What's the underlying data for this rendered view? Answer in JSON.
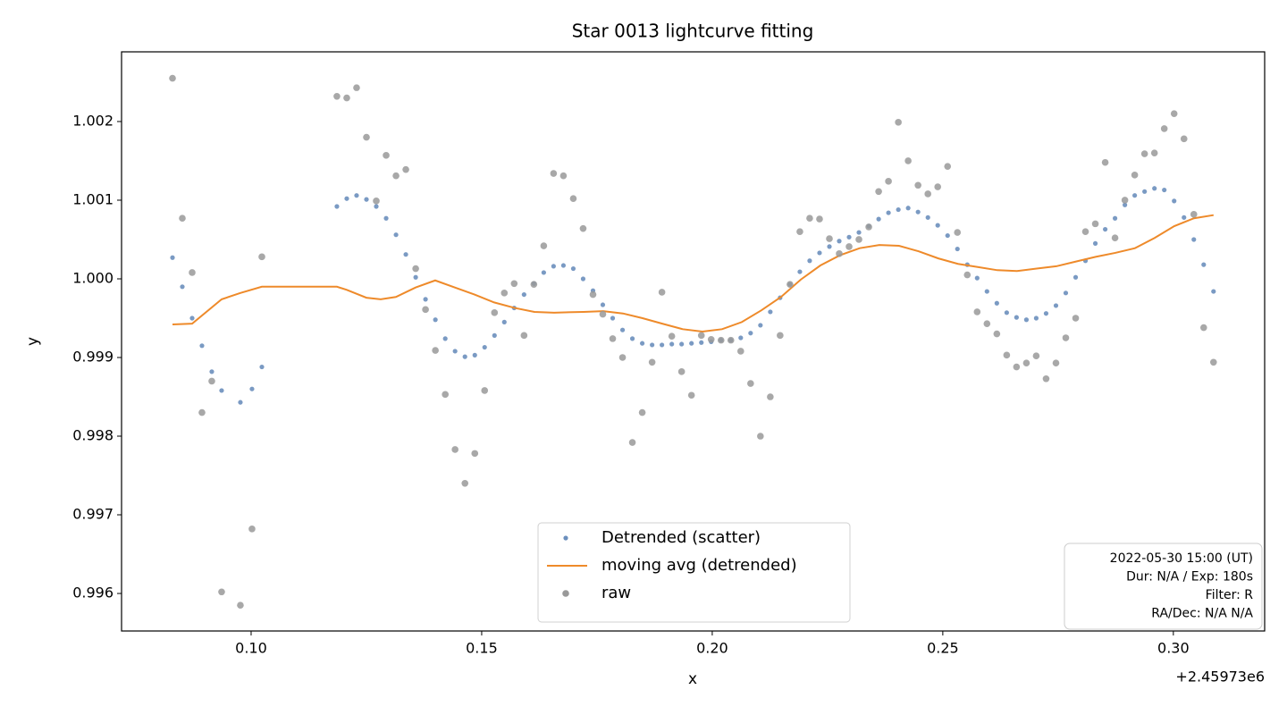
{
  "chart_data": {
    "type": "scatter",
    "title": "Star 0013 lightcurve fitting",
    "x_label": "x",
    "y_label": "y",
    "x_offset_label": "+2.45973e6",
    "xlim": [
      0.0719,
      0.3198
    ],
    "ylim": [
      0.995523,
      1.002886
    ],
    "xticks": [
      {
        "value": 0.1,
        "label": "0.10"
      },
      0.15,
      {
        "value": 0.2,
        "label": "0.20"
      },
      0.25,
      {
        "value": 0.3,
        "label": "0.30"
      }
    ],
    "yticks": [
      0.996,
      0.997,
      0.998,
      0.999,
      {
        "value": 1.0,
        "label": "1.000"
      },
      1.001,
      1.002
    ],
    "grid": false,
    "legend": "lower center",
    "annotation_lines": [
      "2022-05-30 15:00 (UT)",
      "Dur: N/A / Exp: 180s",
      "Filter: R",
      "RA/Dec: N/A N/A"
    ],
    "series": [
      {
        "name": "Detrended (scatter)",
        "type": "scatter",
        "color": "#6b8fbd",
        "x": [
          0.08295,
          0.08508,
          0.08721,
          0.08934,
          0.09147,
          0.0936,
          0.09767,
          0.10019,
          0.10233,
          0.1186,
          0.12074,
          0.12287,
          0.12501,
          0.12714,
          0.12928,
          0.13142,
          0.13355,
          0.13569,
          0.13782,
          0.13996,
          0.1421,
          0.14423,
          0.14637,
          0.14851,
          0.15064,
          0.15278,
          0.15491,
          0.15705,
          0.15919,
          0.16132,
          0.16346,
          0.16559,
          0.16773,
          0.16987,
          0.172,
          0.17414,
          0.17627,
          0.17841,
          0.18055,
          0.18268,
          0.18482,
          0.18696,
          0.18909,
          0.19123,
          0.19336,
          0.1955,
          0.19764,
          0.19977,
          0.20191,
          0.20404,
          0.20618,
          0.20832,
          0.21045,
          0.21259,
          0.21472,
          0.21686,
          0.219,
          0.22113,
          0.22327,
          0.22541,
          0.22754,
          0.22968,
          0.23181,
          0.23395,
          0.23609,
          0.23822,
          0.24036,
          0.24249,
          0.24463,
          0.24677,
          0.2489,
          0.25104,
          0.25317,
          0.25531,
          0.25745,
          0.25958,
          0.26172,
          0.26386,
          0.26599,
          0.26813,
          0.27026,
          0.2724,
          0.27454,
          0.27667,
          0.27881,
          0.28094,
          0.28308,
          0.28522,
          0.28735,
          0.28949,
          0.29162,
          0.29376,
          0.2959,
          0.29803,
          0.30017,
          0.30231,
          0.30444,
          0.30658,
          0.30871
        ],
        "values": [
          1.00027,
          0.9999,
          0.9995,
          0.99915,
          0.99882,
          0.99858,
          0.99843,
          0.9986,
          0.99888,
          1.00092,
          1.00102,
          1.00106,
          1.00101,
          1.00092,
          1.00077,
          1.00056,
          1.00031,
          1.00002,
          0.99974,
          0.99948,
          0.99924,
          0.99908,
          0.99901,
          0.99903,
          0.99913,
          0.99928,
          0.99945,
          0.99963,
          0.9998,
          0.99994,
          1.00008,
          1.00016,
          1.00017,
          1.00013,
          1.0,
          0.99985,
          0.99967,
          0.9995,
          0.99935,
          0.99924,
          0.99918,
          0.99916,
          0.99916,
          0.99917,
          0.99917,
          0.99918,
          0.99919,
          0.9992,
          0.99922,
          0.99922,
          0.99925,
          0.99931,
          0.99941,
          0.99958,
          0.99976,
          0.99993,
          1.00009,
          1.00023,
          1.00033,
          1.00041,
          1.00048,
          1.00053,
          1.00059,
          1.00067,
          1.00076,
          1.00084,
          1.00088,
          1.0009,
          1.00085,
          1.00078,
          1.00068,
          1.00055,
          1.00038,
          1.00018,
          1.00001,
          0.99984,
          0.99969,
          0.99957,
          0.99951,
          0.99948,
          0.9995,
          0.99956,
          0.99966,
          0.99982,
          1.00002,
          1.00023,
          1.00045,
          1.00063,
          1.00077,
          1.00094,
          1.00106,
          1.00111,
          1.00115,
          1.00113,
          1.00099,
          1.00078,
          1.0005,
          1.00018,
          0.99984
        ]
      },
      {
        "name": "moving avg (detrended)",
        "type": "line",
        "color": "#ee8a2a",
        "x": [
          0.08295,
          0.08721,
          0.0936,
          0.09767,
          0.10233,
          0.1186,
          0.12074,
          0.125,
          0.1281,
          0.1314,
          0.13566,
          0.13992,
          0.14419,
          0.14845,
          0.15271,
          0.15717,
          0.16143,
          0.1657,
          0.17209,
          0.17636,
          0.18062,
          0.18488,
          0.18915,
          0.1936,
          0.19787,
          0.20213,
          0.2064,
          0.21066,
          0.21492,
          0.21919,
          0.22345,
          0.22771,
          0.23198,
          0.23624,
          0.2405,
          0.24477,
          0.24903,
          0.25329,
          0.25756,
          0.26182,
          0.26609,
          0.27035,
          0.27461,
          0.27888,
          0.28314,
          0.2874,
          0.29167,
          0.29593,
          0.30019,
          0.30446,
          0.30872
        ],
        "values": [
          0.99942,
          0.99943,
          0.99974,
          0.99982,
          0.9999,
          0.9999,
          0.99986,
          0.99976,
          0.99974,
          0.99977,
          0.99989,
          0.99998,
          0.99989,
          0.9998,
          0.9997,
          0.99963,
          0.99958,
          0.99957,
          0.99958,
          0.99959,
          0.99956,
          0.9995,
          0.99943,
          0.99936,
          0.99933,
          0.99936,
          0.99945,
          0.9996,
          0.99977,
          0.99999,
          1.00017,
          1.0003,
          1.00039,
          1.00043,
          1.00042,
          1.00035,
          1.00026,
          1.00019,
          1.00015,
          1.00011,
          1.0001,
          1.00013,
          1.00016,
          1.00022,
          1.00028,
          1.00033,
          1.00039,
          1.00052,
          1.00067,
          1.00077,
          1.00081
        ]
      },
      {
        "name": "raw",
        "type": "scatter",
        "color": "#999999",
        "x": [
          0.08295,
          0.08508,
          0.08721,
          0.08934,
          0.09147,
          0.0936,
          0.09767,
          0.10019,
          0.10233,
          0.1186,
          0.12074,
          0.12287,
          0.12501,
          0.12714,
          0.12928,
          0.13142,
          0.13355,
          0.13569,
          0.13782,
          0.13996,
          0.1421,
          0.14423,
          0.14637,
          0.14851,
          0.15064,
          0.15278,
          0.15491,
          0.15705,
          0.15919,
          0.16132,
          0.16346,
          0.16559,
          0.16773,
          0.16987,
          0.172,
          0.17414,
          0.17627,
          0.17841,
          0.18055,
          0.18268,
          0.18482,
          0.18696,
          0.18909,
          0.19123,
          0.19336,
          0.1955,
          0.19764,
          0.19977,
          0.20191,
          0.20404,
          0.20618,
          0.20832,
          0.21045,
          0.21259,
          0.21472,
          0.21686,
          0.219,
          0.22113,
          0.22327,
          0.22541,
          0.22754,
          0.22968,
          0.23181,
          0.23395,
          0.23609,
          0.23822,
          0.24036,
          0.24249,
          0.24463,
          0.24677,
          0.2489,
          0.25104,
          0.25317,
          0.25531,
          0.25745,
          0.25958,
          0.26172,
          0.26386,
          0.26599,
          0.26813,
          0.27026,
          0.2724,
          0.27454,
          0.27667,
          0.27881,
          0.28094,
          0.28308,
          0.28522,
          0.28735,
          0.28949,
          0.29162,
          0.29376,
          0.2959,
          0.29803,
          0.30017,
          0.30231,
          0.30444,
          0.30658,
          0.30871
        ],
        "values": [
          1.00255,
          1.00077,
          1.00008,
          0.9983,
          0.9987,
          0.99602,
          0.99585,
          0.99682,
          1.00028,
          1.00232,
          1.0023,
          1.00243,
          1.0018,
          1.00099,
          1.00157,
          1.00131,
          1.00139,
          1.00013,
          0.99961,
          0.99909,
          0.99853,
          0.99783,
          0.9974,
          0.99778,
          0.99858,
          0.99957,
          0.99982,
          0.99994,
          0.99928,
          0.99993,
          1.00042,
          1.00134,
          1.00131,
          1.00102,
          1.00064,
          0.9998,
          0.99955,
          0.99924,
          0.999,
          0.99792,
          0.9983,
          0.99894,
          0.99983,
          0.99927,
          0.99882,
          0.99852,
          0.99928,
          0.99923,
          0.99922,
          0.99922,
          0.99908,
          0.99867,
          0.998,
          0.9985,
          0.99928,
          0.99993,
          1.0006,
          1.00077,
          1.00076,
          1.00051,
          1.00032,
          1.00041,
          1.0005,
          1.00066,
          1.00111,
          1.00124,
          1.00199,
          1.0015,
          1.00119,
          1.00108,
          1.00117,
          1.00143,
          1.00059,
          1.00005,
          0.99958,
          0.99943,
          0.9993,
          0.99903,
          0.99888,
          0.99893,
          0.99902,
          0.99873,
          0.99893,
          0.99925,
          0.9995,
          1.0006,
          1.0007,
          1.00148,
          1.00052,
          1.001,
          1.00132,
          1.00159,
          1.0016,
          1.00191,
          1.0021,
          1.00178,
          1.00082,
          0.99938,
          0.99894
        ]
      }
    ]
  }
}
